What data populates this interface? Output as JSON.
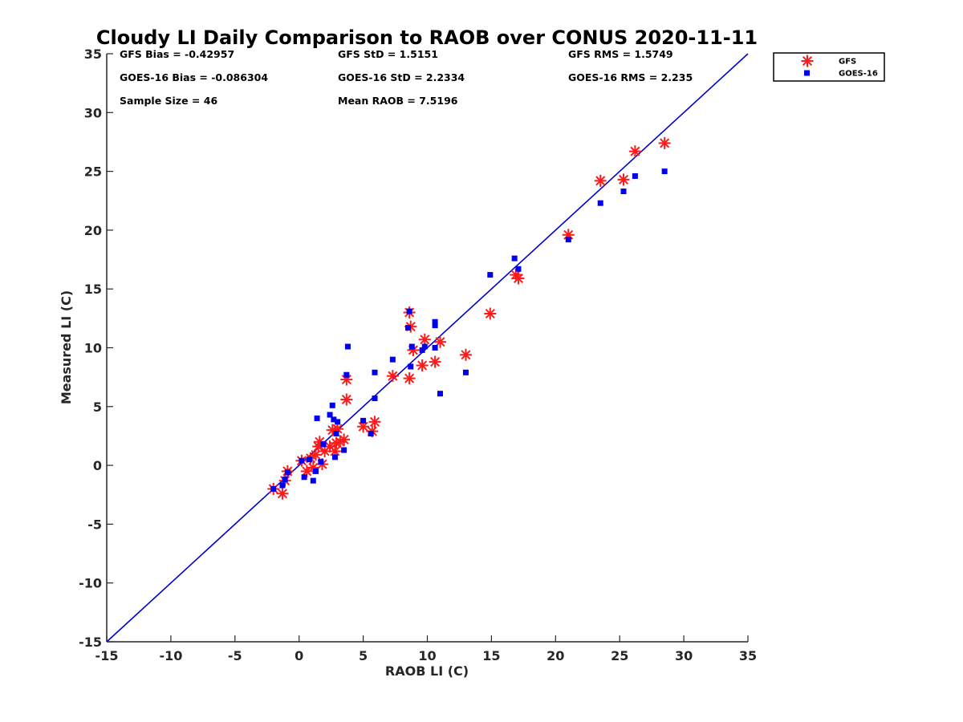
{
  "chart_data": {
    "type": "scatter",
    "title": "Cloudy LI Daily Comparison to RAOB over CONUS 2020-11-11",
    "xlabel": "RAOB LI (C)",
    "ylabel": "Measured LI (C)",
    "xlim": [
      -15,
      35
    ],
    "ylim": [
      -15,
      35
    ],
    "xticks": [
      -15,
      -10,
      -5,
      0,
      5,
      10,
      15,
      20,
      25,
      30,
      35
    ],
    "yticks": [
      -15,
      -10,
      -5,
      0,
      5,
      10,
      15,
      20,
      25,
      30,
      35
    ],
    "grid": false,
    "legend_position": "top-right, outside plot",
    "stats": [
      [
        "GFS Bias = -0.42957",
        "GFS StD = 1.5151",
        "GFS RMS = 1.5749"
      ],
      [
        "GOES-16 Bias = -0.086304",
        "GOES-16 StD = 2.2334",
        "GOES-16 RMS = 2.235"
      ],
      [
        "Sample Size = 46",
        "Mean RAOB = 7.5196",
        ""
      ]
    ],
    "reference_line": {
      "type": "one-to-one",
      "color": "#0000cc"
    },
    "series": [
      {
        "name": "GFS",
        "marker": "asterisk",
        "color": "#ff1a1a",
        "points": [
          [
            -2.0,
            -2.0
          ],
          [
            -1.3,
            -2.4
          ],
          [
            -1.1,
            -1.3
          ],
          [
            -0.9,
            -0.5
          ],
          [
            0.2,
            0.4
          ],
          [
            0.6,
            -0.5
          ],
          [
            0.9,
            0.6
          ],
          [
            1.1,
            -0.2
          ],
          [
            1.3,
            0.9
          ],
          [
            1.5,
            1.6
          ],
          [
            1.6,
            2.0
          ],
          [
            1.8,
            0.1
          ],
          [
            2.0,
            1.2
          ],
          [
            2.4,
            1.6
          ],
          [
            2.6,
            3.0
          ],
          [
            2.8,
            1.2
          ],
          [
            2.9,
            1.9
          ],
          [
            3.0,
            3.1
          ],
          [
            3.2,
            2.0
          ],
          [
            3.5,
            2.2
          ],
          [
            3.7,
            7.3
          ],
          [
            3.7,
            5.6
          ],
          [
            5.0,
            3.3
          ],
          [
            5.7,
            2.9
          ],
          [
            5.9,
            3.7
          ],
          [
            7.3,
            7.6
          ],
          [
            8.6,
            13.0
          ],
          [
            8.7,
            11.8
          ],
          [
            8.6,
            7.4
          ],
          [
            8.9,
            9.8
          ],
          [
            9.6,
            8.5
          ],
          [
            9.8,
            10.7
          ],
          [
            10.6,
            8.8
          ],
          [
            11.0,
            10.5
          ],
          [
            13.0,
            9.4
          ],
          [
            14.9,
            12.9
          ],
          [
            16.9,
            16.2
          ],
          [
            17.1,
            15.9
          ],
          [
            21.0,
            19.6
          ],
          [
            23.5,
            24.2
          ],
          [
            25.3,
            24.3
          ],
          [
            26.2,
            26.7
          ],
          [
            28.5,
            27.4
          ]
        ]
      },
      {
        "name": "GOES-16",
        "marker": "square",
        "color": "#0000ee",
        "points": [
          [
            -2.0,
            -2.0
          ],
          [
            -1.3,
            -1.7
          ],
          [
            -1.1,
            -1.2
          ],
          [
            -0.9,
            -0.6
          ],
          [
            0.2,
            0.4
          ],
          [
            0.4,
            -1.0
          ],
          [
            0.8,
            0.5
          ],
          [
            1.1,
            -1.3
          ],
          [
            1.3,
            -0.5
          ],
          [
            1.4,
            4.0
          ],
          [
            1.7,
            0.3
          ],
          [
            1.9,
            1.8
          ],
          [
            2.4,
            4.3
          ],
          [
            2.6,
            5.1
          ],
          [
            2.7,
            3.9
          ],
          [
            2.8,
            0.7
          ],
          [
            2.9,
            2.7
          ],
          [
            3.0,
            3.7
          ],
          [
            3.5,
            1.3
          ],
          [
            3.7,
            7.7
          ],
          [
            3.8,
            10.1
          ],
          [
            5.0,
            3.8
          ],
          [
            5.6,
            2.7
          ],
          [
            5.9,
            5.7
          ],
          [
            5.9,
            7.9
          ],
          [
            7.3,
            9.0
          ],
          [
            8.5,
            11.7
          ],
          [
            8.6,
            13.1
          ],
          [
            8.7,
            8.4
          ],
          [
            8.8,
            10.1
          ],
          [
            9.6,
            9.8
          ],
          [
            9.8,
            10.1
          ],
          [
            10.6,
            10.0
          ],
          [
            10.6,
            11.9
          ],
          [
            10.6,
            12.2
          ],
          [
            11.0,
            6.1
          ],
          [
            13.0,
            7.9
          ],
          [
            14.9,
            16.2
          ],
          [
            16.8,
            17.6
          ],
          [
            17.1,
            16.7
          ],
          [
            21.0,
            19.2
          ],
          [
            23.5,
            22.3
          ],
          [
            25.3,
            23.3
          ],
          [
            26.2,
            24.6
          ],
          [
            28.5,
            25.0
          ]
        ]
      }
    ]
  }
}
